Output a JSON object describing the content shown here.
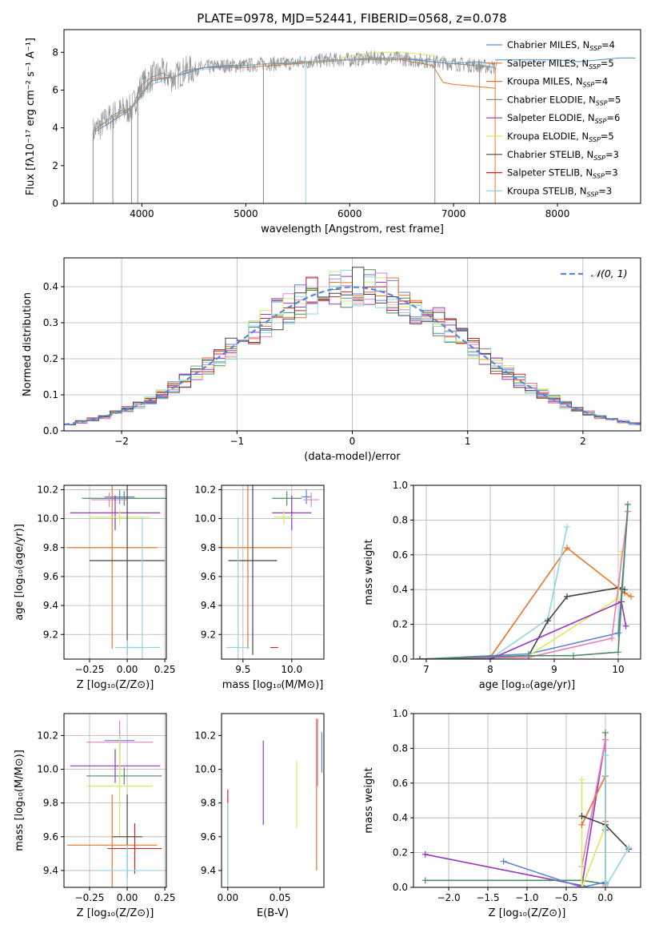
{
  "colors": {
    "chabrier_miles": "#5b86d6",
    "salpeter_miles": "#e8742a",
    "kroupa_miles": "#4d94b8",
    "chabrier_elodie": "#8c8c8c",
    "salpeter_elodie": "#9b34c1",
    "kroupa_elodie": "#d4ec60",
    "chabrier_stelib": "#444444",
    "salpeter_stelib": "#cc2222",
    "kroupa_stelib": "#8fd6dd",
    "pink": "#e57fc0",
    "green": "#4f8a63",
    "normal": "#5b86d6"
  },
  "chart_data": [
    {
      "id": "spectrum",
      "type": "line",
      "title": "PLATE=0978, MJD=52441, FIBERID=0568, z=0.078",
      "xlabel": "wavelength [Angstrom, rest frame]",
      "ylabel": "Flux [fλ10⁻¹⁷ erg cm⁻² s⁻¹ A⁻¹]",
      "xlim": [
        3250,
        8800
      ],
      "ylim": [
        0,
        9.2
      ],
      "xticks": [
        4000,
        5000,
        6000,
        7000,
        8000
      ],
      "yticks": [
        0,
        2,
        4,
        6,
        8
      ],
      "grid": false,
      "legend_position": "top-right",
      "legend": [
        {
          "label": "Chabrier MILES, N",
          "sub": "SSP",
          "tail": "=4",
          "color": "#5b86d6"
        },
        {
          "label": "Salpeter MILES, N",
          "sub": "SSP",
          "tail": "=5",
          "color": "#e8742a"
        },
        {
          "label": "Kroupa MILES, N",
          "sub": "SSP",
          "tail": "=4",
          "color": "#e8742a"
        },
        {
          "label": "Chabrier ELODIE, N",
          "sub": "SSP",
          "tail": "=5",
          "color": "#8c8c8c"
        },
        {
          "label": "Salpeter ELODIE, N",
          "sub": "SSP",
          "tail": "=6",
          "color": "#9b34c1"
        },
        {
          "label": "Kroupa ELODIE, N",
          "sub": "SSP",
          "tail": "=5",
          "color": "#d4ec60"
        },
        {
          "label": "Chabrier STELIB, N",
          "sub": "SSP",
          "tail": "=3",
          "color": "#444444"
        },
        {
          "label": "Salpeter STELIB, N",
          "sub": "SSP",
          "tail": "=3",
          "color": "#cc2222"
        },
        {
          "label": "Kroupa STELIB, N",
          "sub": "SSP",
          "tail": "=3",
          "color": "#8fd6dd"
        }
      ],
      "series": [
        {
          "color": "#8c8c8c",
          "x": [
            3530,
            3600,
            3700,
            3800,
            3900,
            4000,
            4100,
            4200,
            4300,
            4400,
            4600,
            4800,
            5000,
            5200,
            5400,
            5600,
            5800,
            6000,
            6200,
            6400,
            6600,
            6800,
            7000,
            7200,
            7400
          ],
          "y": [
            3.8,
            4.1,
            4.6,
            4.9,
            5.0,
            6.3,
            6.7,
            6.9,
            6.6,
            7.0,
            7.2,
            7.3,
            7.3,
            7.4,
            7.4,
            7.5,
            7.6,
            7.6,
            7.7,
            7.7,
            7.6,
            7.5,
            7.4,
            7.3,
            7.2
          ]
        },
        {
          "color": "#e8742a",
          "x": [
            3550,
            3700,
            3900,
            4100,
            4300,
            4600,
            5000,
            5500,
            6000,
            6500,
            6800,
            6900,
            7000,
            7200,
            7400
          ],
          "y": [
            3.9,
            4.5,
            5.1,
            6.6,
            6.7,
            7.2,
            7.2,
            7.4,
            7.6,
            7.6,
            7.3,
            6.4,
            6.3,
            6.2,
            6.1
          ]
        },
        {
          "color": "#5b86d6",
          "x": [
            3550,
            3700,
            3900,
            4100,
            4300,
            4600,
            5000,
            5500,
            6000,
            6500,
            6800,
            7000,
            7200,
            7400
          ],
          "y": [
            3.8,
            4.3,
            5.0,
            6.5,
            6.7,
            7.2,
            7.3,
            7.5,
            7.6,
            7.7,
            7.5,
            7.4,
            7.5,
            7.4
          ]
        },
        {
          "color": "#8fd6dd",
          "x": [
            3550,
            3700,
            3900,
            4100,
            4300,
            4600,
            5000,
            5500,
            6000,
            6500,
            6800,
            7000,
            7200,
            7400
          ],
          "y": [
            4.0,
            4.5,
            5.0,
            6.3,
            6.7,
            7.1,
            7.3,
            7.5,
            7.6,
            7.7,
            7.6,
            7.5,
            7.4,
            7.2
          ]
        },
        {
          "color": "#d4ec60",
          "x": [
            5900,
            6100,
            6300,
            6500,
            6700,
            6800
          ],
          "y": [
            7.7,
            7.9,
            8.0,
            8.0,
            7.9,
            7.8
          ]
        }
      ]
    },
    {
      "id": "residuals",
      "type": "line",
      "xlabel": "(data-model)/error",
      "ylabel": "Normed distribution",
      "xlim": [
        -2.5,
        2.5
      ],
      "ylim": [
        0,
        0.48
      ],
      "xticks": [
        -2,
        -1,
        0,
        1,
        2
      ],
      "yticks": [
        0.0,
        0.1,
        0.2,
        0.3,
        0.4
      ],
      "grid": true,
      "legend_position": "top-right",
      "legend": [
        {
          "label": "𝒩(0, 1)",
          "color": "#5b86d6",
          "style": "dashed"
        }
      ],
      "normal_curve": {
        "mu": 0,
        "sigma": 1
      }
    },
    {
      "id": "age-vs-Z",
      "type": "scatter",
      "xlabel": "Z [log₁₀(Z/Z⊙)]",
      "ylabel": "age  [log₁₀(age/yr)]",
      "xlim": [
        -0.42,
        0.26
      ],
      "ylim": [
        9.03,
        10.23
      ],
      "xticks": [
        -0.25,
        0.0,
        0.25
      ],
      "yticks": [
        9.2,
        9.4,
        9.6,
        9.8,
        10.0,
        10.2
      ],
      "grid": true,
      "points": [
        {
          "x": -0.05,
          "y": 10.15,
          "xerr": 0.1,
          "yerr": 0.05,
          "color": "#5b86d6"
        },
        {
          "x": -0.1,
          "y": 9.8,
          "xerr": 0.3,
          "yerr": 0.7,
          "color": "#e8742a"
        },
        {
          "x": -0.02,
          "y": 10.14,
          "xerr": 0.28,
          "yerr": 0.05,
          "color": "#4f8a63"
        },
        {
          "x": -0.12,
          "y": 10.13,
          "xerr": 0.12,
          "yerr": 0.05,
          "color": "#e57fc0"
        },
        {
          "x": -0.08,
          "y": 10.04,
          "xerr": 0.3,
          "yerr": 0.12,
          "color": "#9b34c1"
        },
        {
          "x": -0.05,
          "y": 10.01,
          "xerr": 0.2,
          "yerr": 0.05,
          "color": "#d4ec60"
        },
        {
          "x": 0.0,
          "y": 9.71,
          "xerr": 0.25,
          "yerr": 0.65,
          "color": "#444444"
        },
        {
          "x": 0.0,
          "y": 9.11,
          "xerr": 0.08,
          "yerr": 0.05,
          "color": "#8fd6dd"
        },
        {
          "x": 0.1,
          "y": 9.11,
          "xerr": 0.12,
          "yerr": 0.9,
          "color": "#8fd6dd"
        }
      ]
    },
    {
      "id": "age-vs-mass",
      "type": "scatter",
      "xlabel": "mass [log₁₀(M/M⊙)]",
      "ylabel": "",
      "xlim": [
        9.28,
        10.33
      ],
      "ylim": [
        9.03,
        10.23
      ],
      "xticks": [
        9.5,
        10.0
      ],
      "yticks": [
        9.2,
        9.4,
        9.6,
        9.8,
        10.0,
        10.2
      ],
      "grid": true,
      "points": [
        {
          "x": 10.15,
          "y": 10.15,
          "xerr": 0.05,
          "yerr": 0.05,
          "color": "#5b86d6"
        },
        {
          "x": 9.55,
          "y": 9.8,
          "xerr": 0.45,
          "yerr": 0.7,
          "color": "#e8742a"
        },
        {
          "x": 9.95,
          "y": 10.14,
          "xerr": 0.15,
          "yerr": 0.05,
          "color": "#4f8a63"
        },
        {
          "x": 10.2,
          "y": 10.13,
          "xerr": 0.08,
          "yerr": 0.05,
          "color": "#e57fc0"
        },
        {
          "x": 10.0,
          "y": 10.04,
          "xerr": 0.2,
          "yerr": 0.12,
          "color": "#9b34c1"
        },
        {
          "x": 9.92,
          "y": 10.01,
          "xerr": 0.1,
          "yerr": 0.05,
          "color": "#d4ec60"
        },
        {
          "x": 9.6,
          "y": 9.71,
          "xerr": 0.25,
          "yerr": 0.65,
          "color": "#444444"
        },
        {
          "x": 9.45,
          "y": 9.11,
          "xerr": 0.12,
          "yerr": 0.9,
          "color": "#8fd6dd"
        },
        {
          "x": 9.82,
          "y": 9.11,
          "xerr": 0.04,
          "yerr": 0.0,
          "color": "#cc2222"
        }
      ]
    },
    {
      "id": "weight-vs-age",
      "type": "line",
      "xlabel": "age  [log₁₀(age/yr)]",
      "ylabel": "mass weight",
      "xlim": [
        6.8,
        10.35
      ],
      "ylim": [
        0.0,
        1.0
      ],
      "xticks": [
        7,
        8,
        9,
        10
      ],
      "yticks": [
        0.0,
        0.2,
        0.4,
        0.6,
        0.8,
        1.0
      ],
      "grid": true,
      "series": [
        {
          "color": "#e8742a",
          "x": [
            6.9,
            8.0,
            9.2,
            10.1,
            10.2
          ],
          "y": [
            0.0,
            0.01,
            0.64,
            0.38,
            0.36
          ]
        },
        {
          "color": "#8fd6dd",
          "x": [
            6.9,
            8.0,
            8.9,
            9.2
          ],
          "y": [
            0.0,
            0.0,
            0.23,
            0.76
          ]
        },
        {
          "color": "#444444",
          "x": [
            6.9,
            8.6,
            8.9,
            9.2,
            10.0,
            10.1
          ],
          "y": [
            0.0,
            0.02,
            0.22,
            0.36,
            0.41,
            0.4
          ]
        },
        {
          "color": "#5b86d6",
          "x": [
            6.9,
            8.6,
            10.0,
            10.15
          ],
          "y": [
            0.0,
            0.03,
            0.15,
            0.85
          ]
        },
        {
          "color": "#d4ec60",
          "x": [
            6.9,
            8.6,
            10.0,
            10.05
          ],
          "y": [
            0.0,
            0.02,
            0.35,
            0.62
          ]
        },
        {
          "color": "#e57fc0",
          "x": [
            6.9,
            8.6,
            9.9,
            10.15
          ],
          "y": [
            0.0,
            0.01,
            0.12,
            0.85
          ]
        },
        {
          "color": "#9b34c1",
          "x": [
            6.9,
            8.0,
            10.05,
            10.12
          ],
          "y": [
            0.0,
            0.0,
            0.33,
            0.19
          ]
        },
        {
          "color": "#4f8a63",
          "x": [
            6.9,
            8.6,
            9.3,
            10.0,
            10.15
          ],
          "y": [
            0.0,
            0.02,
            0.02,
            0.04,
            0.89
          ]
        }
      ]
    },
    {
      "id": "mass-vs-Z",
      "type": "scatter",
      "xlabel": "Z [log₁₀(Z/Z⊙)]",
      "ylabel": "mass [log₁₀(M/M⊙)]",
      "xlim": [
        -0.42,
        0.26
      ],
      "ylim": [
        9.3,
        10.33
      ],
      "xticks": [
        -0.25,
        0.0,
        0.25
      ],
      "yticks": [
        9.4,
        9.6,
        9.8,
        10.0,
        10.2
      ],
      "grid": true,
      "points": [
        {
          "x": -0.05,
          "y": 10.17,
          "xerr": 0.1,
          "yerr": 0.05,
          "color": "#5b86d6"
        },
        {
          "x": -0.05,
          "y": 10.16,
          "xerr": 0.22,
          "yerr": 0.13,
          "color": "#e57fc0"
        },
        {
          "x": -0.08,
          "y": 10.02,
          "xerr": 0.3,
          "yerr": 0.1,
          "color": "#9b34c1"
        },
        {
          "x": -0.02,
          "y": 9.96,
          "xerr": 0.25,
          "yerr": 0.05,
          "color": "#4f8a63"
        },
        {
          "x": -0.05,
          "y": 9.9,
          "xerr": 0.22,
          "yerr": 0.3,
          "color": "#d4ec60"
        },
        {
          "x": 0.0,
          "y": 9.6,
          "xerr": 0.1,
          "yerr": 0.25,
          "color": "#444444"
        },
        {
          "x": -0.1,
          "y": 9.55,
          "xerr": 0.3,
          "yerr": 0.3,
          "color": "#e8742a"
        },
        {
          "x": 0.05,
          "y": 9.53,
          "xerr": 0.18,
          "yerr": 0.15,
          "color": "#cc2222"
        },
        {
          "x": 0.0,
          "y": 9.4,
          "xerr": 0.2,
          "yerr": 0.15,
          "color": "#8fd6dd"
        }
      ]
    },
    {
      "id": "mass-vs-ebv",
      "type": "scatter",
      "xlabel": "E(B-V)",
      "ylabel": "",
      "xlim": [
        -0.006,
        0.092
      ],
      "ylim": [
        9.3,
        10.33
      ],
      "xticks": [
        0.0,
        0.05
      ],
      "yticks": [
        9.4,
        9.6,
        9.8,
        10.0,
        10.2
      ],
      "grid": false,
      "points": [
        {
          "x": 0.0,
          "y": 9.6,
          "xerr": 0.0,
          "yerr": 0.28,
          "color": "#cc2222"
        },
        {
          "x": 0.0,
          "y": 9.55,
          "xerr": 0.0,
          "yerr": 0.25,
          "color": "#8fd6dd"
        },
        {
          "x": 0.034,
          "y": 9.92,
          "xerr": 0.0,
          "yerr": 0.25,
          "color": "#9b34c1"
        },
        {
          "x": 0.066,
          "y": 9.85,
          "xerr": 0.0,
          "yerr": 0.2,
          "color": "#d4ec60"
        },
        {
          "x": 0.085,
          "y": 9.85,
          "xerr": 0.0,
          "yerr": 0.45,
          "color": "#e8742a"
        },
        {
          "x": 0.086,
          "y": 10.1,
          "xerr": 0.0,
          "yerr": 0.2,
          "color": "#e57fc0"
        },
        {
          "x": 0.09,
          "y": 10.1,
          "xerr": 0.0,
          "yerr": 0.12,
          "color": "#5b86d6"
        }
      ]
    },
    {
      "id": "weight-vs-Z",
      "type": "line",
      "xlabel": "Z [log₁₀(Z/Z⊙)]",
      "ylabel": "mass weight",
      "xlim": [
        -2.45,
        0.45
      ],
      "ylim": [
        0.0,
        1.0
      ],
      "xticks": [
        -2.0,
        -1.5,
        -1.0,
        -0.5,
        0.0
      ],
      "yticks": [
        0.0,
        0.2,
        0.4,
        0.6,
        0.8,
        1.0
      ],
      "grid": true,
      "series": [
        {
          "color": "#9b34c1",
          "x": [
            -2.3,
            -0.3,
            0.0,
            0.0
          ],
          "y": [
            0.19,
            0.01,
            0.85,
            0.33
          ]
        },
        {
          "color": "#4f8a63",
          "x": [
            -2.3,
            -0.3,
            0.0,
            0.0
          ],
          "y": [
            0.04,
            0.04,
            0.02,
            0.89
          ]
        },
        {
          "color": "#5b86d6",
          "x": [
            -1.3,
            -0.3,
            0.0,
            0.0
          ],
          "y": [
            0.15,
            0.0,
            0.03,
            0.76
          ]
        },
        {
          "color": "#e57fc0",
          "x": [
            -0.3,
            0.0,
            0.0
          ],
          "y": [
            0.12,
            0.85,
            0.01
          ]
        },
        {
          "color": "#d4ec60",
          "x": [
            -0.3,
            -0.3,
            0.0
          ],
          "y": [
            0.62,
            0.0,
            0.35
          ]
        },
        {
          "color": "#e8742a",
          "x": [
            -0.3,
            0.0,
            0.0
          ],
          "y": [
            0.36,
            0.64,
            0.38
          ]
        },
        {
          "color": "#444444",
          "x": [
            -0.3,
            0.0,
            0.3
          ],
          "y": [
            0.41,
            0.36,
            0.22
          ]
        },
        {
          "color": "#8fd6dd",
          "x": [
            0.0,
            0.0,
            0.3
          ],
          "y": [
            0.76,
            0.0,
            0.23
          ]
        }
      ]
    }
  ]
}
